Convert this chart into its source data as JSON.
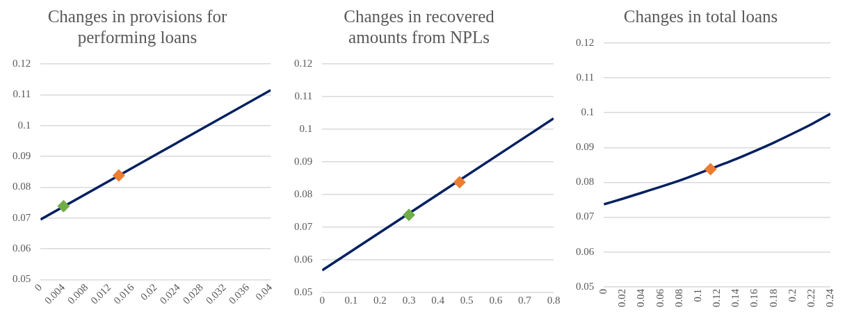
{
  "chart_data": [
    {
      "type": "line",
      "title": "Changes in provisions for performing loans",
      "xlim": [
        0,
        0.04
      ],
      "xticks": [
        0,
        0.004,
        0.008,
        0.012,
        0.016,
        0.02,
        0.024,
        0.028,
        0.032,
        0.036,
        0.04
      ],
      "ylim": [
        0.05,
        0.12
      ],
      "yticks": [
        0.05,
        0.06,
        0.07,
        0.08,
        0.09,
        0.1,
        0.11,
        0.12
      ],
      "grid": "y",
      "legend": false,
      "series": [
        {
          "color": "#002060",
          "marker": "none",
          "x": [
            0,
            0.04
          ],
          "values": [
            0.0695,
            0.1115
          ]
        },
        {
          "type": "scatter",
          "marker": "diamond",
          "color": "#70ad47",
          "x": [
            0.004
          ],
          "values": [
            0.0738
          ]
        },
        {
          "type": "scatter",
          "marker": "diamond",
          "color": "#ed7d31",
          "x": [
            0.0136
          ],
          "values": [
            0.0838
          ]
        }
      ]
    },
    {
      "type": "line",
      "title": "Changes in recovered amounts from NPLs",
      "xlim": [
        0,
        0.8
      ],
      "xticks": [
        0,
        0.1,
        0.2,
        0.3,
        0.4,
        0.5,
        0.6,
        0.7,
        0.8
      ],
      "ylim": [
        0.05,
        0.12
      ],
      "yticks": [
        0.05,
        0.06,
        0.07,
        0.08,
        0.09,
        0.1,
        0.11,
        0.12
      ],
      "grid": "y",
      "legend": false,
      "series": [
        {
          "color": "#002060",
          "marker": "none",
          "x": [
            0,
            0.8
          ],
          "values": [
            0.0568,
            0.1033
          ]
        },
        {
          "type": "scatter",
          "marker": "diamond",
          "color": "#70ad47",
          "x": [
            0.3
          ],
          "values": [
            0.0738
          ]
        },
        {
          "type": "scatter",
          "marker": "diamond",
          "color": "#ed7d31",
          "x": [
            0.475
          ],
          "values": [
            0.0838
          ]
        }
      ]
    },
    {
      "type": "line",
      "title": "Changes in total loans",
      "xlim": [
        0,
        0.24
      ],
      "xticks": [
        0,
        0.02,
        0.04,
        0.06,
        0.08,
        0.1,
        0.12,
        0.14,
        0.16,
        0.18,
        0.2,
        0.22,
        0.24
      ],
      "ylim": [
        0.05,
        0.12
      ],
      "yticks": [
        0.05,
        0.06,
        0.07,
        0.08,
        0.09,
        0.1,
        0.11,
        0.12
      ],
      "grid": "y",
      "legend": false,
      "series": [
        {
          "color": "#002060",
          "marker": "none",
          "x": [
            0,
            0.02,
            0.04,
            0.06,
            0.08,
            0.1,
            0.12,
            0.14,
            0.16,
            0.18,
            0.2,
            0.22,
            0.24
          ],
          "values": [
            0.0737,
            0.0753,
            0.077,
            0.0787,
            0.0805,
            0.0825,
            0.0846,
            0.0867,
            0.089,
            0.0914,
            0.094,
            0.0967,
            0.0997
          ]
        },
        {
          "type": "scatter",
          "marker": "diamond",
          "color": "#ed7d31",
          "x": [
            0.113
          ],
          "values": [
            0.0838
          ]
        }
      ]
    }
  ]
}
